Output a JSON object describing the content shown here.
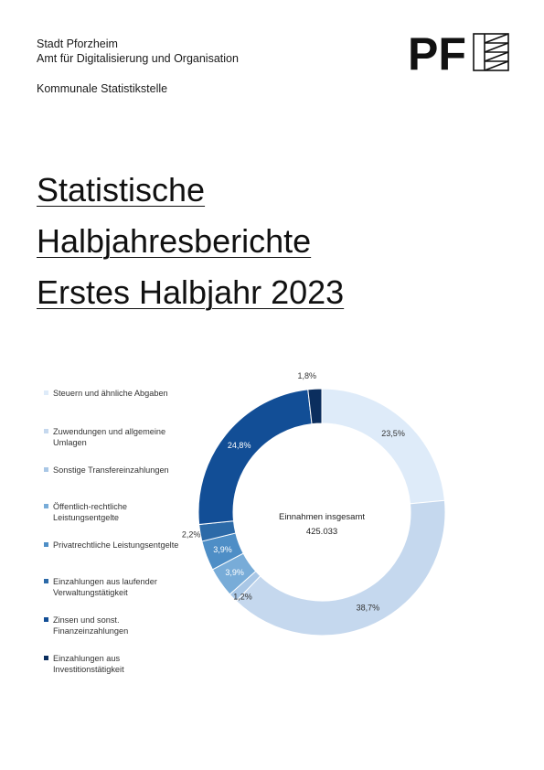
{
  "header": {
    "org_line1": "Stadt Pforzheim",
    "org_line2": "Amt für Digitalisierung und Organisation",
    "department": "Kommunale Statistikstelle",
    "logo_text": "PF"
  },
  "title": {
    "line1": "Statistische",
    "line2": "Halbjahresberichte",
    "line3": "Erstes Halbjahr 2023"
  },
  "chart_data": {
    "type": "pie",
    "donut": true,
    "center_label": "Einnahmen insgesamt",
    "center_value": "425.033",
    "legend_position": "left",
    "series": [
      {
        "label": "Steuern und ähnliche Abgaben",
        "value": 23.5,
        "display": "23,5%",
        "color": "#deebf9"
      },
      {
        "label": "Zuwendungen und allgemeine Umlagen",
        "value": 38.7,
        "display": "38,7%",
        "color": "#c5d8ee"
      },
      {
        "label": "Sonstige Transfereinzahlungen",
        "value": 1.2,
        "display": "1,2%",
        "color": "#a9c7e6"
      },
      {
        "label": "Öffentlich-rechtliche Leistungsentgelte",
        "value": 3.9,
        "display": "3,9%",
        "color": "#78acd8"
      },
      {
        "label": "Privatrechtliche Leistungsentgelte",
        "value": 3.9,
        "display": "3,9%",
        "color": "#4e8ec6"
      },
      {
        "label": "Einzahlungen aus laufender Verwaltungstätigkeit",
        "value": 2.2,
        "display": "2,2%",
        "color": "#2c6aa8"
      },
      {
        "label": "Zinsen und sonst. Finanzeinzahlungen",
        "value": 24.8,
        "display": "24,8%",
        "color": "#124e96"
      },
      {
        "label": "Einzahlungen aus Investitionstätigkeit",
        "value": 1.8,
        "display": "1,8%",
        "color": "#0b2e5e"
      }
    ]
  }
}
